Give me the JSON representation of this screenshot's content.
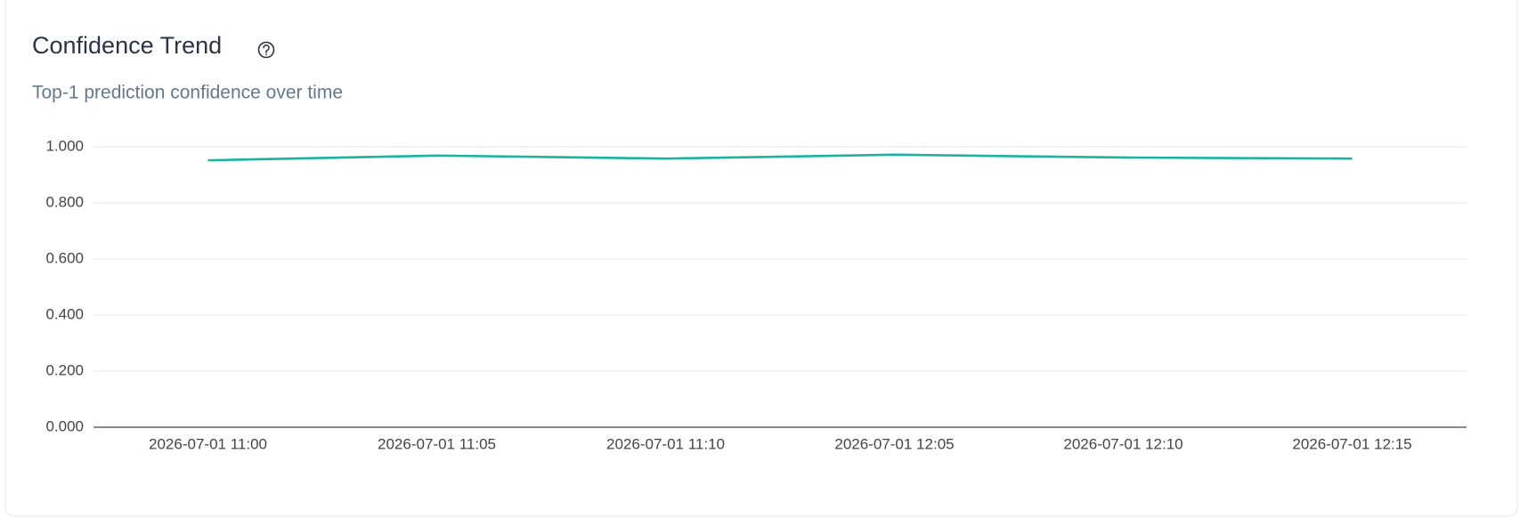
{
  "chart_data": {
    "type": "line",
    "title": "Confidence Trend",
    "subtitle": "Top-1 prediction confidence over time",
    "categories": [
      "2026-07-01 11:00",
      "2026-07-01 11:05",
      "2026-07-01 11:10",
      "2026-07-01 12:05",
      "2026-07-01 12:10",
      "2026-07-01 12:15"
    ],
    "values": [
      0.952,
      0.969,
      0.958,
      0.972,
      0.962,
      0.958
    ],
    "color": "#1ab3a0",
    "ylim": [
      0,
      1
    ],
    "yticks": [
      {
        "value": 0,
        "label": "0.000"
      },
      {
        "value": 0.2,
        "label": "0.200"
      },
      {
        "value": 0.4,
        "label": "0.400"
      },
      {
        "value": 0.6,
        "label": "0.600"
      },
      {
        "value": 0.8,
        "label": "0.800"
      },
      {
        "value": 1,
        "label": "1.000"
      }
    ],
    "grid": true
  }
}
